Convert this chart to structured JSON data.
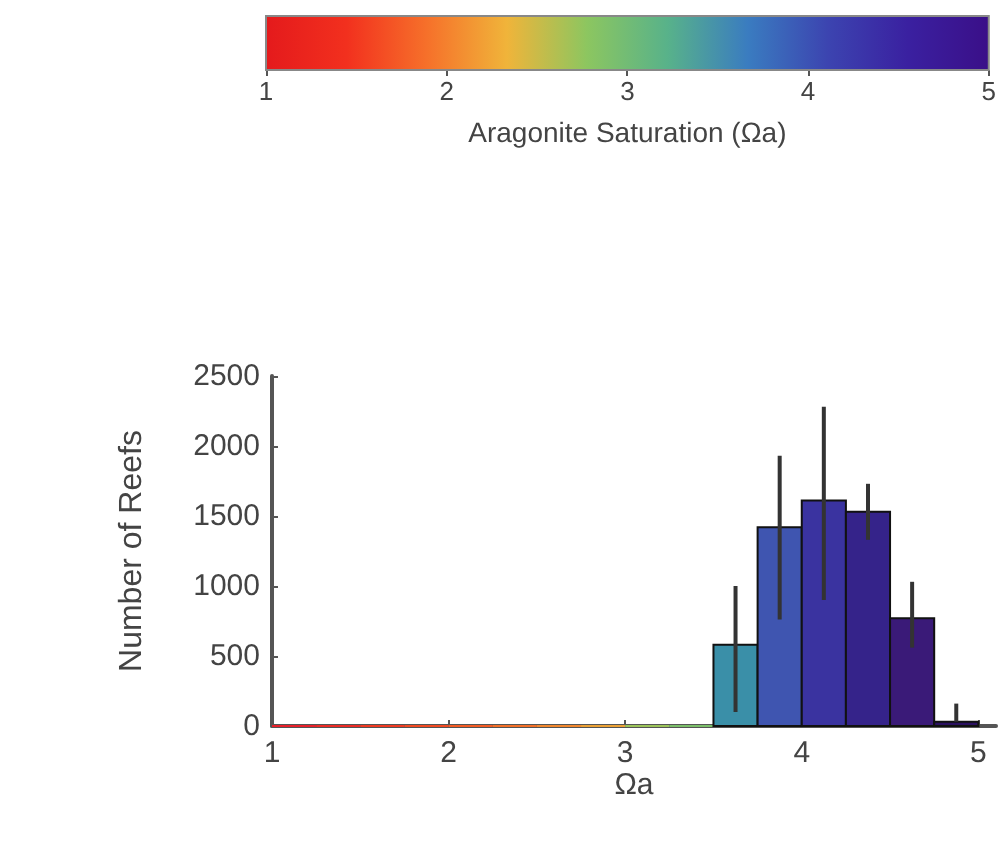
{
  "chart_data": {
    "type": "histogram",
    "xlabel": "Ωa",
    "ylabel": "Number of Reefs",
    "clabel": "Aragonite Saturation (Ωa)",
    "bins": [
      1,
      1.25,
      1.5,
      1.75,
      2,
      2.25,
      2.5,
      2.75,
      3,
      3.25,
      3.5,
      3.75,
      4,
      4.25,
      4.5,
      4.75,
      5
    ],
    "values": [
      0,
      0,
      0,
      0,
      0,
      0,
      0,
      0,
      0,
      0,
      580,
      1420,
      1610,
      1530,
      770,
      30
    ],
    "errors": [
      null,
      null,
      null,
      null,
      null,
      null,
      null,
      null,
      null,
      null,
      [
        100,
        1000
      ],
      [
        760,
        1930
      ],
      [
        900,
        2280
      ],
      [
        1330,
        1730
      ],
      [
        560,
        1030
      ],
      [
        30,
        160
      ]
    ],
    "colors": [
      "#e8202a",
      "#ec2b25",
      "#f03a22",
      "#f24a22",
      "#f45c24",
      "#f47028",
      "#f2882e",
      "#eca236",
      "#9cc45a",
      "#7cbf6a",
      "#3a8fa8",
      "#3f55b0",
      "#3a33a0",
      "#35238a",
      "#3a1a78",
      "#2a1060"
    ],
    "xlim": [
      1,
      5.1
    ],
    "xticks": [
      1,
      2,
      3,
      4,
      5
    ],
    "ylim": [
      0,
      2500
    ],
    "yticks": [
      0,
      500,
      1000,
      1500,
      2000,
      2500
    ],
    "clim": [
      1,
      5
    ],
    "cticks": [
      1,
      2,
      3,
      4,
      5
    ],
    "grid": false
  }
}
